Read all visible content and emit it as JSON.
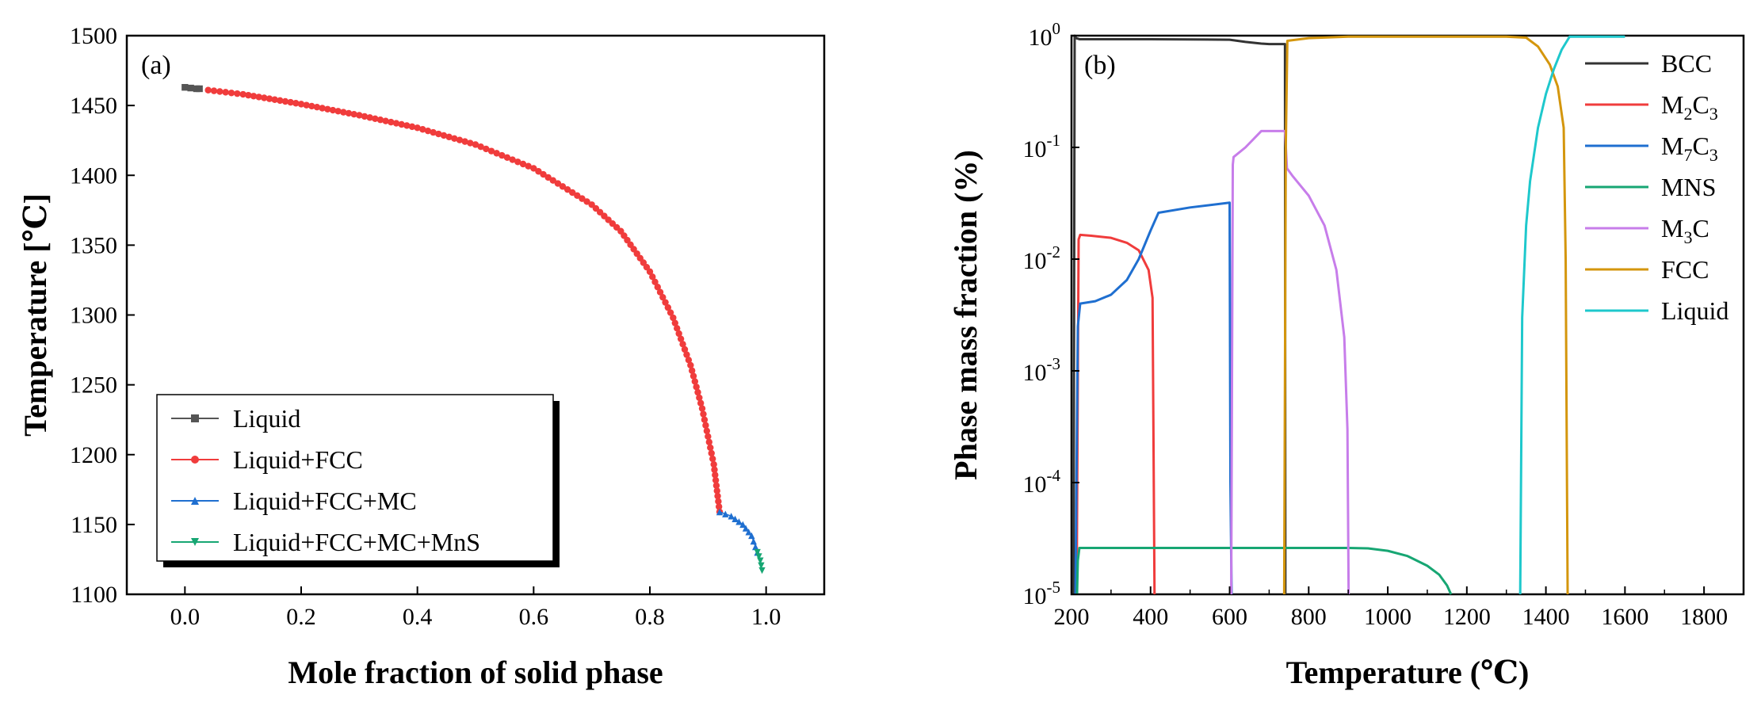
{
  "figure": {
    "panels": [
      "(a)",
      "(b)"
    ]
  },
  "chart_data": [
    {
      "type": "scatter",
      "label": "(a)",
      "xlabel": "Mole fraction of solid phase",
      "ylabel": "Temperature [℃]",
      "xlim": [
        -0.1,
        1.1
      ],
      "ylim": [
        1100,
        1500
      ],
      "xticks": [
        0.0,
        0.2,
        0.4,
        0.6,
        0.8,
        1.0
      ],
      "xtick_labels": [
        "0.0",
        "0.2",
        "0.4",
        "0.6",
        "0.8",
        "1.0"
      ],
      "yticks": [
        1100,
        1150,
        1200,
        1250,
        1300,
        1350,
        1400,
        1450,
        1500
      ],
      "ytick_labels": [
        "1100",
        "1150",
        "1200",
        "1250",
        "1300",
        "1350",
        "1400",
        "1450",
        "1500"
      ],
      "legend_position": "bottom-left",
      "series": [
        {
          "name": "Liquid",
          "color": "#555555",
          "marker": "square",
          "x": [
            0.0,
            0.01,
            0.02,
            0.025
          ],
          "y": [
            1463,
            1462.5,
            1462,
            1462
          ]
        },
        {
          "name": "Liquid+FCC",
          "color": "#f03c3c",
          "marker": "circle",
          "x": [
            0.04,
            0.1,
            0.2,
            0.3,
            0.4,
            0.5,
            0.6,
            0.7,
            0.75,
            0.8,
            0.84,
            0.87,
            0.89,
            0.91,
            0.92
          ],
          "y": [
            1461,
            1458,
            1451,
            1443,
            1434,
            1422,
            1405,
            1379,
            1360,
            1331,
            1298,
            1264,
            1233,
            1193,
            1159
          ]
        },
        {
          "name": "Liquid+FCC+MC",
          "color": "#1f6fd0",
          "marker": "triangle-up",
          "x": [
            0.92,
            0.94,
            0.96,
            0.975,
            0.985
          ],
          "y": [
            1159,
            1156,
            1150,
            1142,
            1130
          ]
        },
        {
          "name": "Liquid+FCC+MC+MnS",
          "color": "#17a673",
          "marker": "triangle-down",
          "x": [
            0.985,
            0.99,
            0.993
          ],
          "y": [
            1130,
            1124,
            1117
          ]
        }
      ]
    },
    {
      "type": "line",
      "label": "(b)",
      "xlabel": "Temperature (℃)",
      "ylabel": "Phase mass fraction (%)",
      "yscale": "log",
      "xlim": [
        200,
        1900
      ],
      "ylim": [
        1e-05,
        1
      ],
      "xticks": [
        200,
        400,
        600,
        800,
        1000,
        1200,
        1400,
        1600,
        1800
      ],
      "xtick_labels": [
        "200",
        "400",
        "600",
        "800",
        "1000",
        "1200",
        "1400",
        "1600",
        "1800"
      ],
      "yticks": [
        1e-05,
        0.0001,
        0.001,
        0.01,
        0.1,
        1
      ],
      "ytick_labels": [
        {
          "base": "10",
          "exp": "-5"
        },
        {
          "base": "10",
          "exp": "-4"
        },
        {
          "base": "10",
          "exp": "-3"
        },
        {
          "base": "10",
          "exp": "-2"
        },
        {
          "base": "10",
          "exp": "-1"
        },
        {
          "base": "10",
          "exp": "0"
        }
      ],
      "legend_position": "top-right",
      "series": [
        {
          "name": "BCC",
          "legend": {
            "main": "BCC",
            "sub": "",
            "after": ""
          },
          "color": "#333333",
          "x": [
            205,
            208,
            212,
            220,
            400,
            600,
            640,
            680,
            700,
            740,
            741
          ],
          "y": [
            1e-05,
            1,
            0.95,
            0.93,
            0.93,
            0.92,
            0.88,
            0.85,
            0.84,
            0.84,
            1e-05
          ]
        },
        {
          "name": "M2C3",
          "legend": {
            "main": "M",
            "sub": "2",
            "after": "C",
            "sub2": "3"
          },
          "color": "#f03c3c",
          "x": [
            213,
            218,
            222,
            250,
            300,
            340,
            370,
            395,
            405,
            410
          ],
          "y": [
            1e-05,
            0.015,
            0.0165,
            0.0162,
            0.0155,
            0.014,
            0.012,
            0.008,
            0.0045,
            1e-05
          ]
        },
        {
          "name": "M7C3",
          "legend": {
            "main": "M",
            "sub": "7",
            "after": "C",
            "sub2": "3"
          },
          "color": "#1f6fd0",
          "x": [
            210,
            216,
            222,
            260,
            300,
            340,
            370,
            400,
            420,
            500,
            600,
            602,
            605
          ],
          "y": [
            1e-05,
            0.0025,
            0.004,
            0.0042,
            0.0048,
            0.0065,
            0.01,
            0.018,
            0.026,
            0.029,
            0.032,
            0.0001,
            1e-05
          ]
        },
        {
          "name": "MNS",
          "legend": {
            "main": "MNS",
            "sub": "",
            "after": ""
          },
          "color": "#17a673",
          "x": [
            214,
            216,
            220,
            400,
            600,
            800,
            900,
            950,
            1000,
            1050,
            1100,
            1130,
            1150,
            1160
          ],
          "y": [
            1e-05,
            2e-05,
            2.6e-05,
            2.6e-05,
            2.6e-05,
            2.6e-05,
            2.6e-05,
            2.58e-05,
            2.45e-05,
            2.2e-05,
            1.8e-05,
            1.5e-05,
            1.2e-05,
            1e-05
          ]
        },
        {
          "name": "M3C",
          "legend": {
            "main": "M",
            "sub": "3",
            "after": "C"
          },
          "color": "#c77dea",
          "x": [
            604,
            608,
            610,
            640,
            680,
            740,
            745,
            760,
            800,
            840,
            870,
            890,
            898,
            901
          ],
          "y": [
            1e-05,
            0.07,
            0.082,
            0.1,
            0.14,
            0.14,
            0.065,
            0.055,
            0.037,
            0.02,
            0.008,
            0.002,
            0.0003,
            1e-05
          ]
        },
        {
          "name": "FCC",
          "legend": {
            "main": "FCC",
            "sub": "",
            "after": ""
          },
          "color": "#d4960d",
          "x": [
            738,
            742,
            746,
            800,
            900,
            1000,
            1100,
            1300,
            1350,
            1380,
            1410,
            1430,
            1445,
            1450,
            1455
          ],
          "y": [
            1e-05,
            0.1,
            0.9,
            0.95,
            0.98,
            0.98,
            0.98,
            0.98,
            0.96,
            0.8,
            0.55,
            0.35,
            0.15,
            0.01,
            1e-05
          ]
        },
        {
          "name": "Liquid",
          "legend": {
            "main": "Liquid",
            "sub": "",
            "after": ""
          },
          "color": "#1ec8cc",
          "x": [
            1335,
            1340,
            1350,
            1360,
            1380,
            1400,
            1420,
            1440,
            1460,
            1600
          ],
          "y": [
            1e-05,
            0.003,
            0.02,
            0.05,
            0.15,
            0.3,
            0.5,
            0.75,
            0.98,
            0.98
          ]
        }
      ]
    }
  ]
}
